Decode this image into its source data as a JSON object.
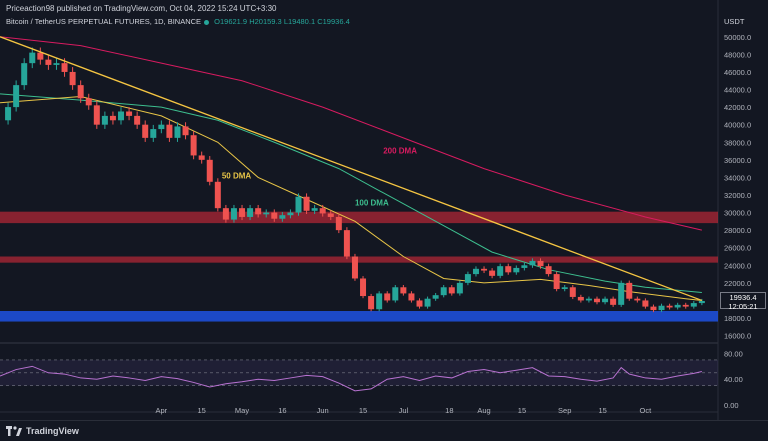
{
  "header": {
    "publisher_text": "Priceaction98 published on TradingView.com, Oct 04, 2022 15:24 UTC+3:30",
    "symbol_text": "Bitcoin / TetherUS PERPETUAL FUTURES, 1D, BINANCE",
    "ohlc": {
      "open": "O19621.9",
      "high": "H20159.3",
      "low": "L19480.1",
      "close": "C19936.4"
    },
    "currency": "USDT",
    "current_price": "19936.4",
    "countdown": "12:05:21"
  },
  "footer": {
    "brand": "TradingView"
  },
  "colors": {
    "background": "#131722",
    "up": "#26a69a",
    "down": "#ef5350",
    "dma50": "#e8c547",
    "dma100": "#3dbf8f",
    "dma200": "#d81b60",
    "trendline": "#f5c542",
    "resistance_zone": "#c62839",
    "support_zone": "#1e4fd8",
    "rsi": "#b872d1"
  },
  "chart_data": {
    "type": "candlestick",
    "ylim": [
      15500,
      51000
    ],
    "yticks": [
      "50000.0",
      "48000.0",
      "46000.0",
      "44000.0",
      "42000.0",
      "40000.0",
      "38000.0",
      "36000.0",
      "34000.0",
      "32000.0",
      "30000.0",
      "28000.0",
      "26000.0",
      "24000.0",
      "22000.0",
      "20000.0",
      "18000.0",
      "16000.0"
    ],
    "xtick_labels": [
      "Apr",
      "15",
      "May",
      "16",
      "Jun",
      "15",
      "Jul",
      "18",
      "Aug",
      "15",
      "Sep",
      "15",
      "Oct"
    ],
    "xtick_positions": [
      2.0,
      2.5,
      3.0,
      3.5,
      4.0,
      4.5,
      5.0,
      5.57,
      6.0,
      6.47,
      7.0,
      7.47,
      8.0
    ],
    "close_path": [
      [
        0.0,
        40500
      ],
      [
        0.1,
        42000
      ],
      [
        0.2,
        44500
      ],
      [
        0.3,
        47000
      ],
      [
        0.4,
        48200
      ],
      [
        0.5,
        47400
      ],
      [
        0.6,
        46800
      ],
      [
        0.7,
        47000
      ],
      [
        0.8,
        46000
      ],
      [
        0.9,
        44500
      ],
      [
        1.0,
        43000
      ],
      [
        1.1,
        42200
      ],
      [
        1.2,
        40000
      ],
      [
        1.3,
        41000
      ],
      [
        1.4,
        40500
      ],
      [
        1.5,
        41500
      ],
      [
        1.6,
        41000
      ],
      [
        1.7,
        40000
      ],
      [
        1.8,
        38500
      ],
      [
        1.9,
        39500
      ],
      [
        2.0,
        40000
      ],
      [
        2.1,
        38500
      ],
      [
        2.2,
        39800
      ],
      [
        2.3,
        38800
      ],
      [
        2.4,
        36500
      ],
      [
        2.5,
        36000
      ],
      [
        2.6,
        33500
      ],
      [
        2.7,
        30500
      ],
      [
        2.8,
        29200
      ],
      [
        2.9,
        30500
      ],
      [
        3.0,
        29500
      ],
      [
        3.1,
        30500
      ],
      [
        3.2,
        29800
      ],
      [
        3.3,
        30000
      ],
      [
        3.4,
        29300
      ],
      [
        3.5,
        29700
      ],
      [
        3.6,
        30000
      ],
      [
        3.7,
        31800
      ],
      [
        3.8,
        30200
      ],
      [
        3.9,
        30500
      ],
      [
        4.0,
        29900
      ],
      [
        4.1,
        29500
      ],
      [
        4.2,
        28000
      ],
      [
        4.3,
        25000
      ],
      [
        4.4,
        22500
      ],
      [
        4.5,
        20500
      ],
      [
        4.6,
        19000
      ],
      [
        4.7,
        20800
      ],
      [
        4.8,
        20000
      ],
      [
        4.9,
        21500
      ],
      [
        5.0,
        20800
      ],
      [
        5.1,
        20000
      ],
      [
        5.2,
        19300
      ],
      [
        5.3,
        20200
      ],
      [
        5.4,
        20600
      ],
      [
        5.5,
        21500
      ],
      [
        5.6,
        20800
      ],
      [
        5.7,
        22000
      ],
      [
        5.8,
        23000
      ],
      [
        5.9,
        23600
      ],
      [
        6.0,
        23400
      ],
      [
        6.1,
        22800
      ],
      [
        6.2,
        23900
      ],
      [
        6.3,
        23200
      ],
      [
        6.4,
        23700
      ],
      [
        6.5,
        24000
      ],
      [
        6.6,
        24500
      ],
      [
        6.7,
        23900
      ],
      [
        6.8,
        23000
      ],
      [
        6.9,
        21300
      ],
      [
        7.0,
        21500
      ],
      [
        7.1,
        20400
      ],
      [
        7.2,
        20000
      ],
      [
        7.3,
        20200
      ],
      [
        7.4,
        19800
      ],
      [
        7.5,
        20200
      ],
      [
        7.6,
        19500
      ],
      [
        7.7,
        22000
      ],
      [
        7.8,
        20200
      ],
      [
        7.9,
        20000
      ],
      [
        8.0,
        19300
      ],
      [
        8.1,
        18900
      ],
      [
        8.2,
        19400
      ],
      [
        8.3,
        19200
      ],
      [
        8.4,
        19500
      ],
      [
        8.5,
        19300
      ],
      [
        8.6,
        19700
      ],
      [
        8.7,
        19936
      ]
    ],
    "dma50_path": [
      [
        0.0,
        42500
      ],
      [
        1.0,
        43200
      ],
      [
        2.0,
        41000
      ],
      [
        2.7,
        38000
      ],
      [
        3.2,
        34000
      ],
      [
        3.8,
        31500
      ],
      [
        4.4,
        29000
      ],
      [
        5.0,
        25000
      ],
      [
        5.5,
        22500
      ],
      [
        6.0,
        22000
      ],
      [
        6.7,
        22400
      ],
      [
        7.3,
        21700
      ],
      [
        7.8,
        21000
      ],
      [
        8.5,
        20200
      ],
      [
        8.7,
        20000
      ]
    ],
    "dma100_path": [
      [
        0.0,
        43500
      ],
      [
        1.0,
        42800
      ],
      [
        2.0,
        42000
      ],
      [
        2.7,
        40500
      ],
      [
        3.4,
        38000
      ],
      [
        4.2,
        35000
      ],
      [
        4.8,
        32000
      ],
      [
        5.5,
        28500
      ],
      [
        6.1,
        25500
      ],
      [
        6.8,
        23500
      ],
      [
        7.5,
        22200
      ],
      [
        8.0,
        21500
      ],
      [
        8.7,
        20900
      ]
    ],
    "dma200_path": [
      [
        0.0,
        50000
      ],
      [
        1.0,
        49000
      ],
      [
        2.0,
        47000
      ],
      [
        3.0,
        45000
      ],
      [
        4.0,
        42000
      ],
      [
        5.0,
        38500
      ],
      [
        6.0,
        35000
      ],
      [
        7.0,
        32000
      ],
      [
        8.0,
        29500
      ],
      [
        8.7,
        28000
      ]
    ],
    "trendline_path": [
      [
        0.0,
        50000
      ],
      [
        8.7,
        20000
      ]
    ],
    "resistance_zone": [
      28800,
      30100
    ],
    "mid_resistance": [
      24300,
      25000
    ],
    "support_zone": [
      17600,
      18800
    ],
    "annotations": [
      {
        "text": "200 DMA",
        "x": 4.75,
        "y": 36700,
        "color": "#d81b60"
      },
      {
        "text": "50 DMA",
        "x": 2.75,
        "y": 33900,
        "color": "#e8c547"
      },
      {
        "text": "100 DMA",
        "x": 4.4,
        "y": 30800,
        "color": "#3dbf8f"
      }
    ],
    "rsi": {
      "ylim": [
        0,
        90
      ],
      "yticks": [
        "80.00",
        "40.00",
        "0.00"
      ],
      "band": [
        30,
        70
      ],
      "values": [
        [
          0.0,
          45
        ],
        [
          0.2,
          55
        ],
        [
          0.4,
          60
        ],
        [
          0.6,
          50
        ],
        [
          0.8,
          48
        ],
        [
          1.0,
          42
        ],
        [
          1.2,
          40
        ],
        [
          1.4,
          45
        ],
        [
          1.6,
          42
        ],
        [
          1.8,
          38
        ],
        [
          2.0,
          44
        ],
        [
          2.2,
          41
        ],
        [
          2.4,
          35
        ],
        [
          2.6,
          28
        ],
        [
          2.8,
          33
        ],
        [
          3.0,
          36
        ],
        [
          3.2,
          40
        ],
        [
          3.4,
          38
        ],
        [
          3.6,
          42
        ],
        [
          3.8,
          46
        ],
        [
          4.0,
          44
        ],
        [
          4.2,
          34
        ],
        [
          4.4,
          22
        ],
        [
          4.6,
          25
        ],
        [
          4.8,
          40
        ],
        [
          5.0,
          44
        ],
        [
          5.2,
          38
        ],
        [
          5.4,
          45
        ],
        [
          5.6,
          42
        ],
        [
          5.8,
          52
        ],
        [
          6.0,
          55
        ],
        [
          6.2,
          50
        ],
        [
          6.4,
          54
        ],
        [
          6.6,
          58
        ],
        [
          6.8,
          45
        ],
        [
          7.0,
          44
        ],
        [
          7.2,
          40
        ],
        [
          7.4,
          37
        ],
        [
          7.6,
          42
        ],
        [
          7.7,
          58
        ],
        [
          7.8,
          48
        ],
        [
          8.0,
          42
        ],
        [
          8.2,
          40
        ],
        [
          8.4,
          45
        ],
        [
          8.6,
          49
        ],
        [
          8.7,
          52
        ]
      ]
    }
  }
}
